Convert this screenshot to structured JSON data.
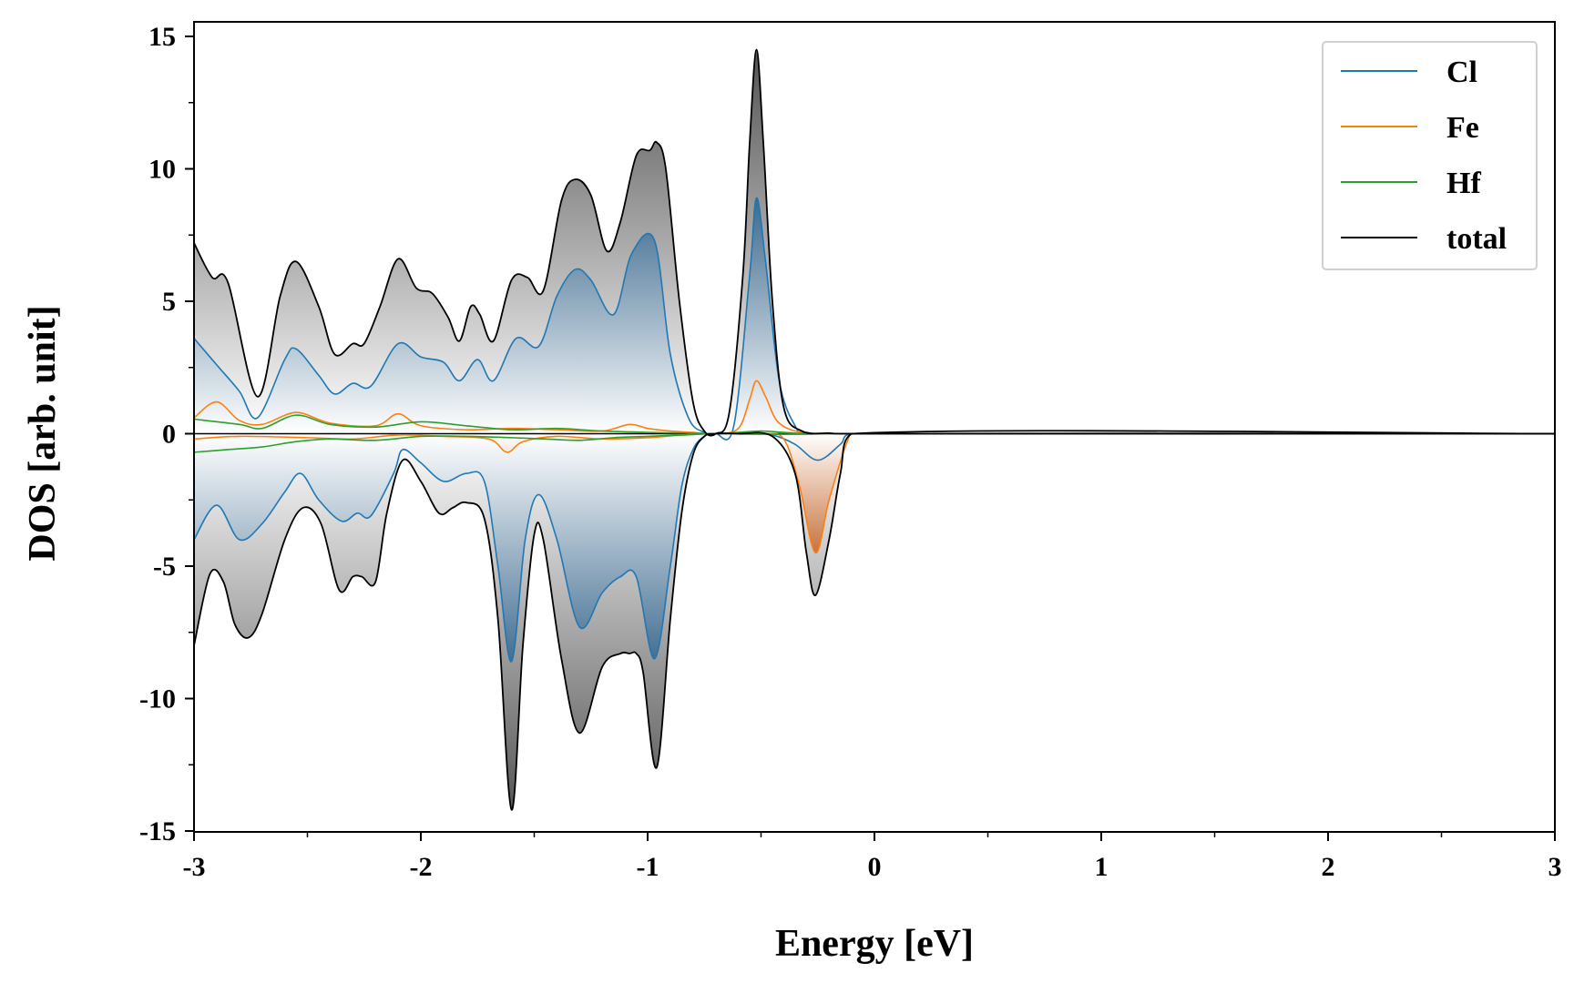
{
  "chart_data": {
    "type": "line",
    "xlabel": "Energy [eV]",
    "ylabel": "DOS [arb. unit]",
    "xlim": [
      -3,
      3
    ],
    "ylim": [
      -15,
      15
    ],
    "x_ticks": [
      -3,
      -2,
      -1,
      0,
      1,
      2,
      3
    ],
    "y_ticks": [
      -15,
      -10,
      -5,
      0,
      5,
      10,
      15
    ],
    "grid": false,
    "legend_position": "top-right",
    "legend": [
      "Cl",
      "Fe",
      "Hf",
      "total"
    ],
    "fill": {
      "total": "gray gradient from zero line",
      "Cl": "blue gradient from zero line",
      "Fe": "orange gradient (spin-down peak only)"
    },
    "series": [
      {
        "name": "Cl",
        "color": "#1f77b4",
        "spin_up": {
          "x": [
            -3.0,
            -2.9,
            -2.8,
            -2.72,
            -2.6,
            -2.55,
            -2.45,
            -2.38,
            -2.3,
            -2.22,
            -2.1,
            -2.0,
            -1.9,
            -1.83,
            -1.75,
            -1.68,
            -1.58,
            -1.48,
            -1.4,
            -1.32,
            -1.25,
            -1.15,
            -1.07,
            -0.97,
            -0.9,
            -0.82,
            -0.75,
            -0.7,
            -0.62,
            -0.55,
            -0.52,
            -0.48,
            -0.42,
            -0.35,
            -0.3,
            -0.1,
            3.0
          ],
          "y": [
            3.6,
            2.6,
            1.6,
            0.6,
            2.8,
            3.2,
            2.2,
            1.5,
            1.9,
            1.8,
            3.4,
            2.9,
            2.7,
            2.0,
            2.8,
            2.0,
            3.6,
            3.3,
            5.2,
            6.2,
            5.8,
            4.5,
            6.8,
            7.3,
            3.0,
            0.6,
            0.05,
            0.0,
            0.3,
            6.0,
            8.9,
            6.5,
            2.0,
            0.3,
            0.05,
            0.0,
            0.0
          ]
        },
        "spin_down": {
          "x": [
            -3.0,
            -2.9,
            -2.8,
            -2.7,
            -2.6,
            -2.53,
            -2.45,
            -2.35,
            -2.28,
            -2.22,
            -2.12,
            -2.08,
            -2.0,
            -1.9,
            -1.8,
            -1.72,
            -1.66,
            -1.6,
            -1.54,
            -1.48,
            -1.4,
            -1.3,
            -1.2,
            -1.12,
            -1.05,
            -0.97,
            -0.9,
            -0.85,
            -0.8,
            -0.75,
            -0.7,
            -0.55,
            -0.45,
            -0.35,
            -0.25,
            -0.15,
            -0.1,
            3.0
          ],
          "y": [
            -4.0,
            -2.7,
            -4.0,
            -3.4,
            -2.2,
            -1.5,
            -2.5,
            -3.3,
            -3.0,
            -3.1,
            -1.5,
            -0.6,
            -1.1,
            -1.8,
            -1.5,
            -1.8,
            -5.0,
            -8.6,
            -4.0,
            -2.3,
            -4.0,
            -7.3,
            -6.0,
            -5.4,
            -5.4,
            -8.5,
            -5.0,
            -2.0,
            -0.6,
            -0.1,
            0.0,
            0.0,
            -0.05,
            -0.4,
            -1.0,
            -0.4,
            0.0,
            0.0
          ]
        }
      },
      {
        "name": "Fe",
        "color": "#ff7f0e",
        "spin_up": {
          "x": [
            -3.0,
            -2.9,
            -2.8,
            -2.7,
            -2.55,
            -2.4,
            -2.2,
            -2.1,
            -2.0,
            -1.8,
            -1.6,
            -1.4,
            -1.2,
            -1.08,
            -1.0,
            -0.9,
            -0.8,
            -0.7,
            -0.6,
            -0.55,
            -0.52,
            -0.48,
            -0.42,
            -0.3,
            -0.1,
            3.0
          ],
          "y": [
            0.6,
            1.2,
            0.5,
            0.35,
            0.8,
            0.4,
            0.3,
            0.75,
            0.3,
            0.15,
            0.2,
            0.15,
            0.1,
            0.35,
            0.2,
            0.1,
            0.05,
            0.0,
            0.2,
            1.3,
            2.0,
            1.4,
            0.4,
            0.02,
            0.0,
            0.0
          ]
        },
        "spin_down": {
          "x": [
            -3.0,
            -2.8,
            -2.5,
            -2.3,
            -2.1,
            -1.9,
            -1.7,
            -1.62,
            -1.55,
            -1.4,
            -1.2,
            -1.0,
            -0.85,
            -0.7,
            -0.5,
            -0.4,
            -0.33,
            -0.26,
            -0.2,
            -0.12,
            -0.08,
            3.0
          ],
          "y": [
            -0.2,
            -0.1,
            -0.15,
            -0.2,
            -0.05,
            -0.1,
            -0.2,
            -0.7,
            -0.3,
            -0.1,
            -0.2,
            -0.15,
            -0.05,
            0.0,
            0.0,
            -0.2,
            -2.0,
            -4.5,
            -2.5,
            -0.3,
            0.0,
            0.0
          ]
        }
      },
      {
        "name": "Hf",
        "color": "#2ca02c",
        "spin_up": {
          "x": [
            -3.0,
            -2.8,
            -2.7,
            -2.55,
            -2.4,
            -2.2,
            -2.0,
            -1.8,
            -1.6,
            -1.4,
            -1.2,
            -1.0,
            -0.8,
            -0.7,
            -0.6,
            -0.5,
            -0.4,
            -0.3,
            -0.2,
            3.0
          ],
          "y": [
            0.55,
            0.35,
            0.2,
            0.7,
            0.35,
            0.25,
            0.45,
            0.3,
            0.15,
            0.2,
            0.1,
            0.05,
            0.02,
            0.0,
            0.05,
            0.1,
            0.05,
            0.0,
            0.0,
            0.0
          ]
        },
        "spin_down": {
          "x": [
            -3.0,
            -2.85,
            -2.7,
            -2.55,
            -2.4,
            -2.2,
            -2.0,
            -1.8,
            -1.6,
            -1.45,
            -1.3,
            -1.15,
            -1.0,
            -0.85,
            -0.7,
            -0.5,
            -0.3,
            -0.2,
            3.0
          ],
          "y": [
            -0.7,
            -0.6,
            -0.5,
            -0.3,
            -0.2,
            -0.25,
            -0.1,
            -0.1,
            -0.15,
            -0.2,
            -0.25,
            -0.15,
            -0.1,
            -0.05,
            0.0,
            -0.02,
            -0.02,
            0.0,
            0.0
          ]
        }
      },
      {
        "name": "total",
        "color": "#000000",
        "spin_up": {
          "x": [
            -3.0,
            -2.92,
            -2.85,
            -2.72,
            -2.62,
            -2.55,
            -2.45,
            -2.38,
            -2.3,
            -2.25,
            -2.18,
            -2.1,
            -2.02,
            -1.95,
            -1.88,
            -1.83,
            -1.78,
            -1.74,
            -1.68,
            -1.6,
            -1.53,
            -1.46,
            -1.38,
            -1.32,
            -1.25,
            -1.18,
            -1.12,
            -1.05,
            -0.99,
            -0.96,
            -0.92,
            -0.86,
            -0.8,
            -0.75,
            -0.7,
            -0.64,
            -0.58,
            -0.55,
            -0.52,
            -0.49,
            -0.45,
            -0.4,
            -0.32,
            -0.2,
            -0.1,
            3.0
          ],
          "y": [
            7.2,
            5.9,
            5.7,
            1.4,
            5.2,
            6.5,
            4.8,
            3.0,
            3.4,
            3.4,
            4.8,
            6.6,
            5.5,
            5.3,
            4.4,
            3.5,
            4.8,
            4.5,
            3.5,
            5.8,
            5.9,
            5.4,
            8.8,
            9.6,
            9.0,
            6.9,
            8.0,
            10.5,
            10.7,
            11.0,
            10.0,
            5.0,
            1.2,
            0.1,
            0.0,
            0.8,
            6.0,
            11.0,
            14.5,
            11.0,
            5.0,
            1.0,
            0.1,
            0.02,
            0.0,
            0.0
          ]
        },
        "spin_down": {
          "x": [
            -3.0,
            -2.93,
            -2.87,
            -2.82,
            -2.76,
            -2.7,
            -2.6,
            -2.52,
            -2.44,
            -2.36,
            -2.3,
            -2.26,
            -2.2,
            -2.15,
            -2.08,
            -2.0,
            -1.92,
            -1.86,
            -1.8,
            -1.72,
            -1.66,
            -1.6,
            -1.55,
            -1.5,
            -1.46,
            -1.38,
            -1.3,
            -1.2,
            -1.12,
            -1.08,
            -1.05,
            -1.02,
            -0.96,
            -0.9,
            -0.85,
            -0.8,
            -0.75,
            -0.7,
            -0.6,
            -0.45,
            -0.35,
            -0.3,
            -0.26,
            -0.2,
            -0.15,
            -0.1,
            3.0
          ],
          "y": [
            -8.0,
            -5.3,
            -5.6,
            -7.2,
            -7.7,
            -6.8,
            -4.0,
            -2.8,
            -3.4,
            -5.9,
            -5.4,
            -5.4,
            -5.6,
            -3.0,
            -1.0,
            -1.8,
            -3.0,
            -2.8,
            -2.6,
            -3.2,
            -7.0,
            -14.2,
            -8.0,
            -3.8,
            -4.0,
            -8.5,
            -11.3,
            -8.8,
            -8.3,
            -8.3,
            -8.3,
            -9.0,
            -12.6,
            -7.0,
            -3.0,
            -0.8,
            -0.1,
            0.0,
            0.0,
            -0.1,
            -1.5,
            -4.5,
            -6.1,
            -4.0,
            -1.5,
            0.0,
            0.0
          ]
        }
      }
    ]
  }
}
